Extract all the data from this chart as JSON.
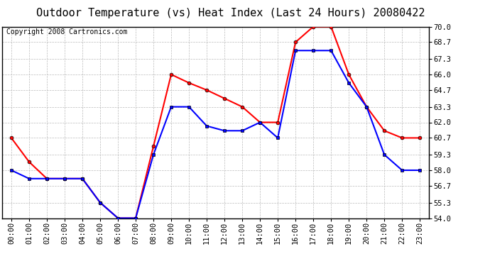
{
  "title": "Outdoor Temperature (vs) Heat Index (Last 24 Hours) 20080422",
  "copyright": "Copyright 2008 Cartronics.com",
  "hours": [
    "00:00",
    "01:00",
    "02:00",
    "03:00",
    "04:00",
    "05:00",
    "06:00",
    "07:00",
    "08:00",
    "09:00",
    "10:00",
    "11:00",
    "12:00",
    "13:00",
    "14:00",
    "15:00",
    "16:00",
    "17:00",
    "18:00",
    "19:00",
    "20:00",
    "21:00",
    "22:00",
    "23:00"
  ],
  "red_temp": [
    60.7,
    58.7,
    57.3,
    57.3,
    57.3,
    55.3,
    54.0,
    54.0,
    60.0,
    66.0,
    65.3,
    64.7,
    64.0,
    63.3,
    62.0,
    62.0,
    68.7,
    70.0,
    70.0,
    66.0,
    63.3,
    61.3,
    60.7,
    60.7
  ],
  "blue_temp": [
    58.0,
    57.3,
    57.3,
    57.3,
    57.3,
    55.3,
    54.0,
    54.0,
    59.3,
    63.3,
    63.3,
    61.7,
    61.3,
    61.3,
    62.0,
    60.7,
    68.0,
    68.0,
    68.0,
    65.3,
    63.3,
    59.3,
    58.0,
    58.0
  ],
  "ylim_min": 54.0,
  "ylim_max": 70.0,
  "yticks": [
    54.0,
    55.3,
    56.7,
    58.0,
    59.3,
    60.7,
    62.0,
    63.3,
    64.7,
    66.0,
    67.3,
    68.7,
    70.0
  ],
  "red_color": "#ff0000",
  "blue_color": "#0000ff",
  "bg_color": "#ffffff",
  "plot_bg_color": "#ffffff",
  "grid_color": "#bbbbbb",
  "title_fontsize": 11,
  "copyright_fontsize": 7,
  "tick_fontsize": 7.5,
  "marker_size": 3.5,
  "linewidth": 1.5
}
